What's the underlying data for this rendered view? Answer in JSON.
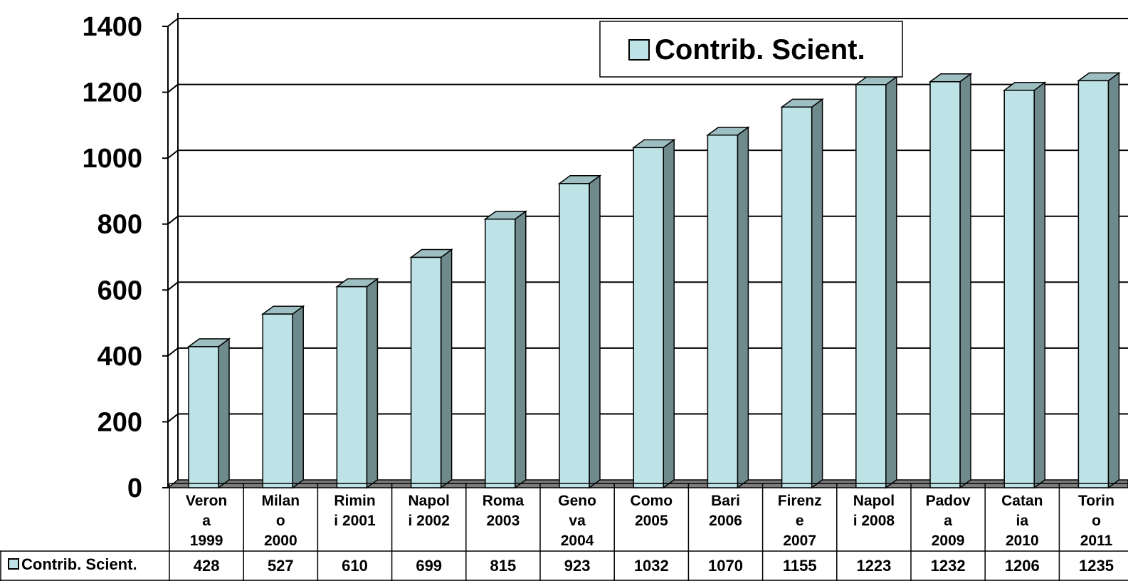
{
  "chart_data": {
    "type": "bar",
    "categories": [
      [
        "Veron",
        "a",
        "1999"
      ],
      [
        "Milan",
        "o",
        "2000"
      ],
      [
        "Rimin",
        "i 2001"
      ],
      [
        "Napol",
        "i 2002"
      ],
      [
        "Roma",
        "2003"
      ],
      [
        "Geno",
        "va",
        "2004"
      ],
      [
        "Como",
        "2005"
      ],
      [
        "Bari",
        "2006"
      ],
      [
        "Firenz",
        "e",
        "2007"
      ],
      [
        "Napol",
        "i 2008"
      ],
      [
        "Padov",
        "a",
        "2009"
      ],
      [
        "Catan",
        "ia",
        "2010"
      ],
      [
        "Torin",
        "o",
        "2011"
      ]
    ],
    "series": [
      {
        "name": "Contrib. Scient.",
        "values": [
          428,
          527,
          610,
          699,
          815,
          923,
          1032,
          1070,
          1155,
          1223,
          1232,
          1206,
          1235
        ]
      }
    ],
    "ylim": [
      0,
      1400
    ],
    "yticks": [
      "0",
      "200",
      "400",
      "600",
      "800",
      "1000",
      "1200",
      "1400"
    ],
    "grid": true,
    "legend": "top-right",
    "data_table": true,
    "colors": {
      "bar_front": "#bde3e6",
      "bar_side": "#6f8a8c",
      "bar_top": "#9dbfc2",
      "floor": "#7d7d7d",
      "grid": "#000000"
    }
  }
}
